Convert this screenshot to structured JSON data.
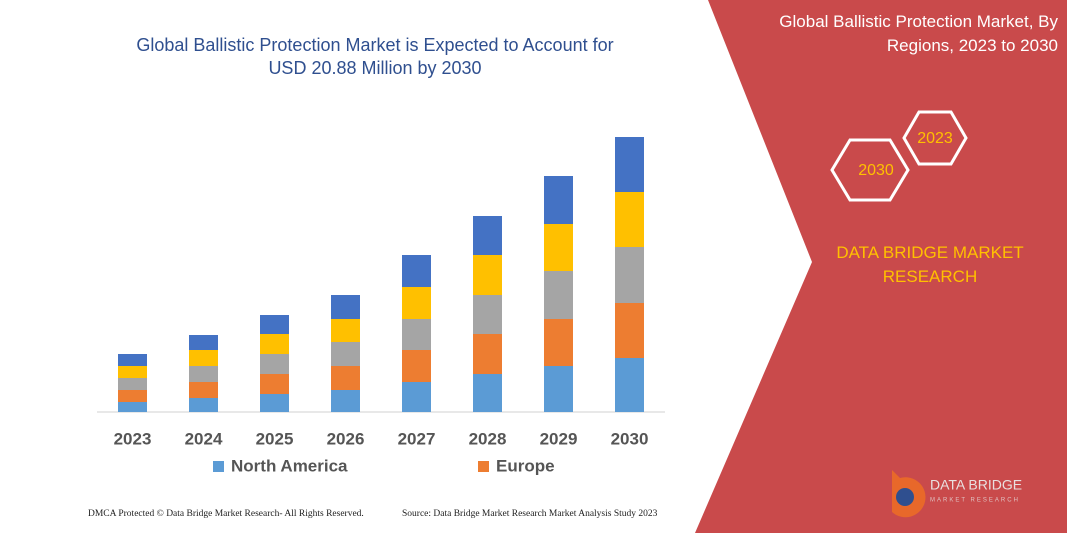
{
  "chart_data": {
    "type": "stacked-bar",
    "title": "Global Ballistic Protection Market is Expected to Account for USD 20.88 Million by 2030",
    "categories": [
      "2023",
      "2024",
      "2025",
      "2026",
      "2027",
      "2028",
      "2029",
      "2030"
    ],
    "series": [
      {
        "name": "North America",
        "color": "#5b9bd5",
        "values": [
          10,
          14,
          18,
          22,
          30,
          38,
          46,
          54
        ]
      },
      {
        "name": "Europe",
        "color": "#ed7d31",
        "values": [
          12,
          16,
          20,
          24,
          32,
          40,
          47,
          55
        ]
      },
      {
        "color": "#a5a5a5",
        "values": [
          12,
          16,
          20,
          24,
          31,
          39,
          48,
          56
        ]
      },
      {
        "color": "#ffc000",
        "values": [
          12,
          16,
          20,
          23,
          32,
          40,
          47,
          55
        ]
      },
      {
        "color": "#4472c4",
        "values": [
          12,
          15,
          19,
          24,
          32,
          39,
          48,
          55
        ]
      }
    ],
    "ylim": [
      0,
      280
    ]
  },
  "panel": {
    "title": "Global Ballistic Protection Market, By Regions, 2023 to 2030",
    "hex_start": "2023",
    "hex_end": "2030",
    "brand": "DATA BRIDGE MARKET RESEARCH"
  },
  "logo": {
    "name": "DATA BRIDGE",
    "sub": "MARKET RESEARCH"
  },
  "footer": {
    "left": "DMCA Protected © Data Bridge Market Research-  All Rights Reserved.",
    "right": "Source: Data Bridge Market Research  Market Analysis Study 2023"
  }
}
